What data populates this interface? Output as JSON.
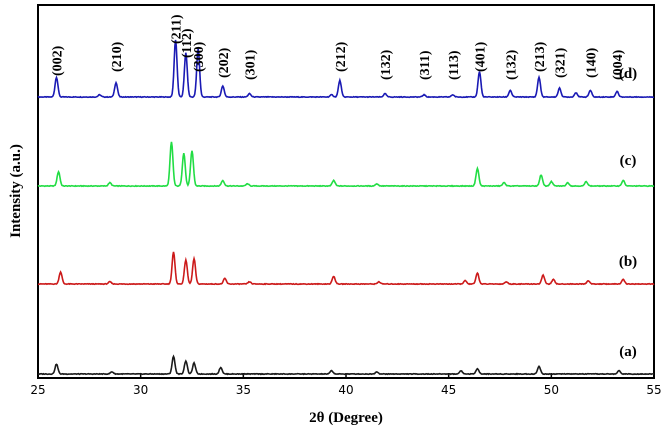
{
  "chart_data": {
    "type": "line",
    "xlabel": "2θ (Degree)",
    "ylabel": "Intensity (a.u.)",
    "xlim": [
      25,
      55
    ],
    "x_ticks": [
      25,
      30,
      35,
      40,
      45,
      50,
      55
    ],
    "y_ticks": [],
    "grid": false,
    "series": [
      {
        "name": "(d)",
        "color": "#1a1ab4",
        "peaks": [
          [
            25.9,
            0.18
          ],
          [
            28.0,
            0.02
          ],
          [
            28.8,
            0.13
          ],
          [
            31.7,
            0.52
          ],
          [
            32.2,
            0.4
          ],
          [
            32.8,
            0.44
          ],
          [
            34.0,
            0.1
          ],
          [
            35.3,
            0.03
          ],
          [
            39.3,
            0.02
          ],
          [
            39.7,
            0.15
          ],
          [
            41.9,
            0.03
          ],
          [
            43.8,
            0.02
          ],
          [
            45.2,
            0.02
          ],
          [
            46.5,
            0.23
          ],
          [
            48.0,
            0.06
          ],
          [
            49.4,
            0.18
          ],
          [
            50.4,
            0.08
          ],
          [
            51.2,
            0.04
          ],
          [
            51.9,
            0.06
          ],
          [
            53.2,
            0.05
          ]
        ]
      },
      {
        "name": "(c)",
        "color": "#22dd44",
        "peaks": [
          [
            26.0,
            0.13
          ],
          [
            28.5,
            0.03
          ],
          [
            31.5,
            0.4
          ],
          [
            32.1,
            0.3
          ],
          [
            32.5,
            0.32
          ],
          [
            34.0,
            0.05
          ],
          [
            35.2,
            0.02
          ],
          [
            39.4,
            0.05
          ],
          [
            41.5,
            0.02
          ],
          [
            46.4,
            0.16
          ],
          [
            47.7,
            0.03
          ],
          [
            49.5,
            0.1
          ],
          [
            50.0,
            0.04
          ],
          [
            50.8,
            0.03
          ],
          [
            51.7,
            0.04
          ],
          [
            53.5,
            0.05
          ]
        ]
      },
      {
        "name": "(b)",
        "color": "#cc1a1a",
        "peaks": [
          [
            26.1,
            0.11
          ],
          [
            28.5,
            0.02
          ],
          [
            31.6,
            0.29
          ],
          [
            32.2,
            0.22
          ],
          [
            32.6,
            0.23
          ],
          [
            34.1,
            0.05
          ],
          [
            35.3,
            0.02
          ],
          [
            39.4,
            0.07
          ],
          [
            41.6,
            0.02
          ],
          [
            45.8,
            0.03
          ],
          [
            46.4,
            0.1
          ],
          [
            47.8,
            0.02
          ],
          [
            49.6,
            0.08
          ],
          [
            50.1,
            0.04
          ],
          [
            51.8,
            0.03
          ],
          [
            53.5,
            0.04
          ]
        ]
      },
      {
        "name": "(a)",
        "color": "#1a1a1a",
        "peaks": [
          [
            25.9,
            0.09
          ],
          [
            28.6,
            0.02
          ],
          [
            31.6,
            0.16
          ],
          [
            32.2,
            0.12
          ],
          [
            32.6,
            0.1
          ],
          [
            33.9,
            0.06
          ],
          [
            39.3,
            0.03
          ],
          [
            41.5,
            0.02
          ],
          [
            45.6,
            0.03
          ],
          [
            46.4,
            0.05
          ],
          [
            49.4,
            0.07
          ],
          [
            53.3,
            0.03
          ]
        ]
      }
    ],
    "annotations": [
      {
        "text": "(002)",
        "x": 25.9
      },
      {
        "text": "(210)",
        "x": 28.8
      },
      {
        "text": "(211)",
        "x": 31.7
      },
      {
        "text": "(112)",
        "x": 32.2
      },
      {
        "text": "(300)",
        "x": 32.8
      },
      {
        "text": "(202)",
        "x": 34.0
      },
      {
        "text": "(301)",
        "x": 35.3
      },
      {
        "text": "(212)",
        "x": 39.7
      },
      {
        "text": "(132)",
        "x": 41.9
      },
      {
        "text": "(311)",
        "x": 43.8
      },
      {
        "text": "(113)",
        "x": 45.2
      },
      {
        "text": "(401)",
        "x": 46.5
      },
      {
        "text": "(132)",
        "x": 48.0
      },
      {
        "text": "(213)",
        "x": 49.4
      },
      {
        "text": "(321)",
        "x": 50.4
      },
      {
        "text": "(140)",
        "x": 51.9
      },
      {
        "text": "(004)",
        "x": 53.2
      }
    ]
  }
}
